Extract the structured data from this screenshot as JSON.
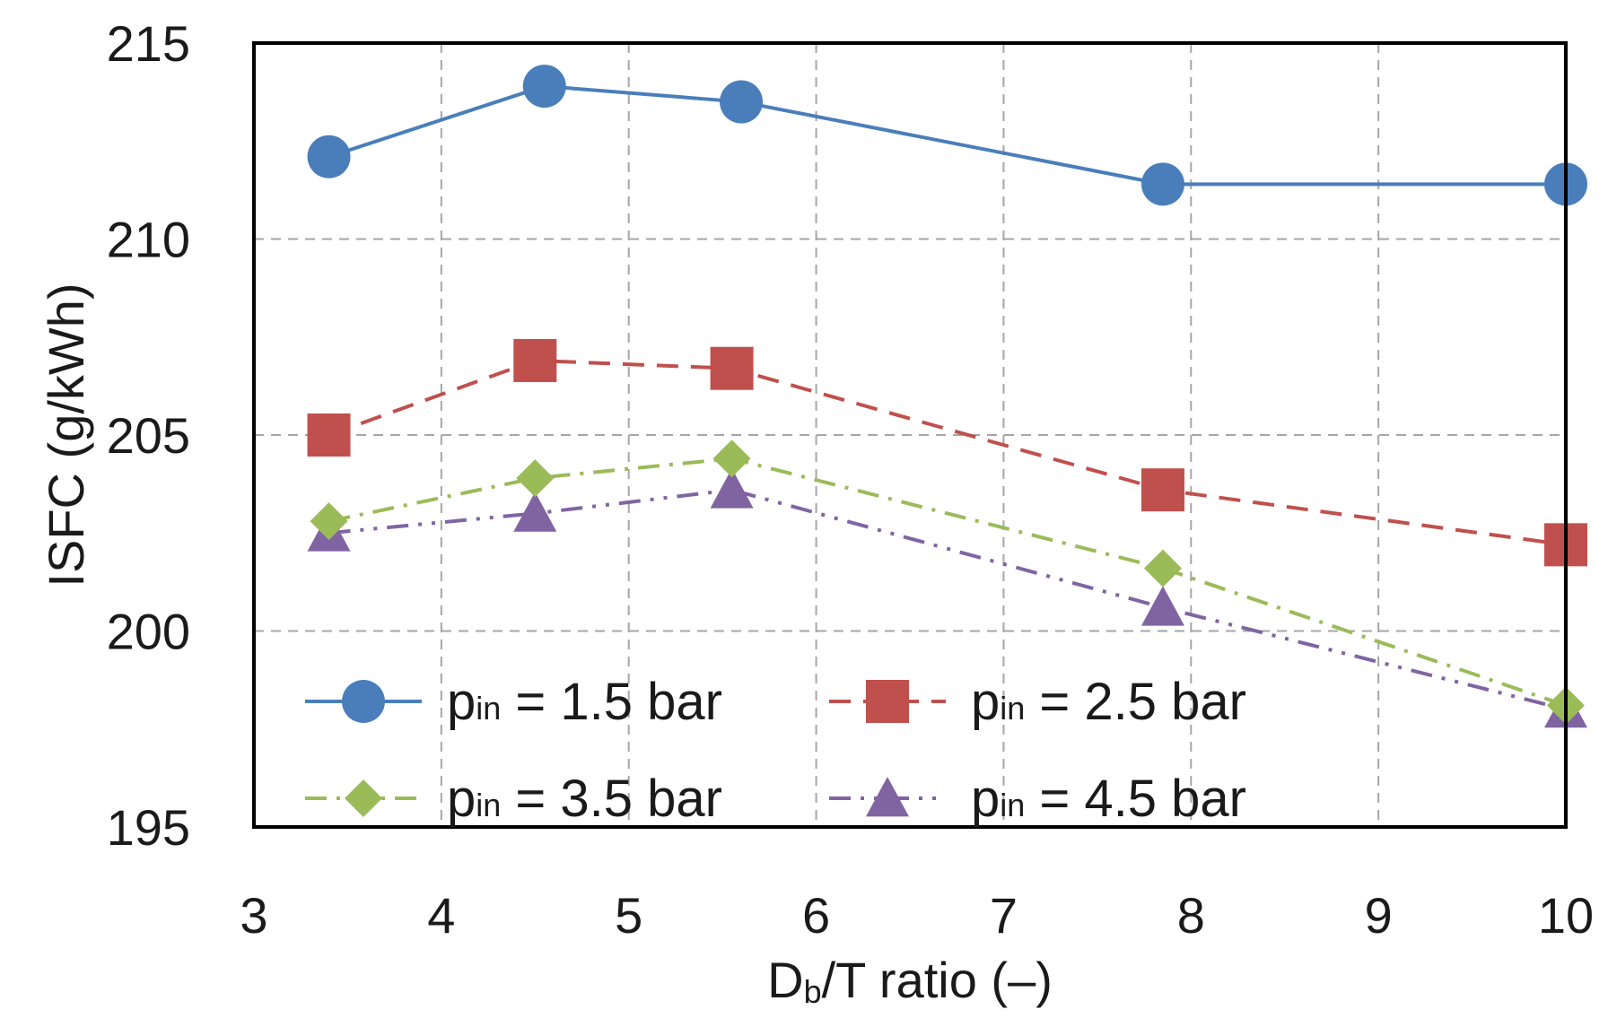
{
  "chart_data": {
    "type": "line",
    "title": "",
    "xlabel": {
      "main": "D",
      "sub": "b",
      "rest": "/T ratio (–)"
    },
    "ylabel": "ISFC (g/kWh)",
    "xlim": [
      3,
      10
    ],
    "ylim": [
      195,
      215
    ],
    "xticks": [
      3,
      4,
      5,
      6,
      7,
      8,
      9,
      10
    ],
    "yticks": [
      195,
      200,
      205,
      210,
      215
    ],
    "grid": true,
    "legend_position": "bottom-left inside plot, two columns",
    "series": [
      {
        "name": "p_in = 1.5 bar",
        "label_main": "p",
        "label_sub": "in",
        "label_rest": " = 1.5 bar",
        "color": "#4a7ebb",
        "marker": "circle",
        "line_style": "solid",
        "x": [
          3.4,
          4.55,
          5.6,
          7.85,
          10.0
        ],
        "y": [
          212.1,
          213.9,
          213.5,
          211.4,
          211.4
        ]
      },
      {
        "name": "p_in = 2.5 bar",
        "label_main": "p",
        "label_sub": "in",
        "label_rest": " = 2.5 bar",
        "color": "#c0504d",
        "marker": "square",
        "line_style": "dash",
        "x": [
          3.4,
          4.5,
          5.55,
          7.85,
          10.0
        ],
        "y": [
          205.0,
          206.9,
          206.7,
          203.6,
          202.2
        ]
      },
      {
        "name": "p_in = 3.5 bar",
        "label_main": "p",
        "label_sub": "in",
        "label_rest": " = 3.5 bar",
        "color": "#9bbb59",
        "marker": "diamond",
        "line_style": "dashdot",
        "x": [
          3.4,
          4.5,
          5.55,
          7.85,
          10.0
        ],
        "y": [
          202.8,
          203.9,
          204.4,
          201.6,
          198.1
        ]
      },
      {
        "name": "p_in = 4.5 bar",
        "label_main": "p",
        "label_sub": "in",
        "label_rest": " = 4.5 bar",
        "color": "#8064a2",
        "marker": "triangle",
        "line_style": "dashdotdot",
        "x": [
          3.4,
          4.5,
          5.55,
          7.85,
          10.0
        ],
        "y": [
          202.5,
          203.0,
          203.6,
          200.6,
          198.0
        ]
      }
    ]
  }
}
